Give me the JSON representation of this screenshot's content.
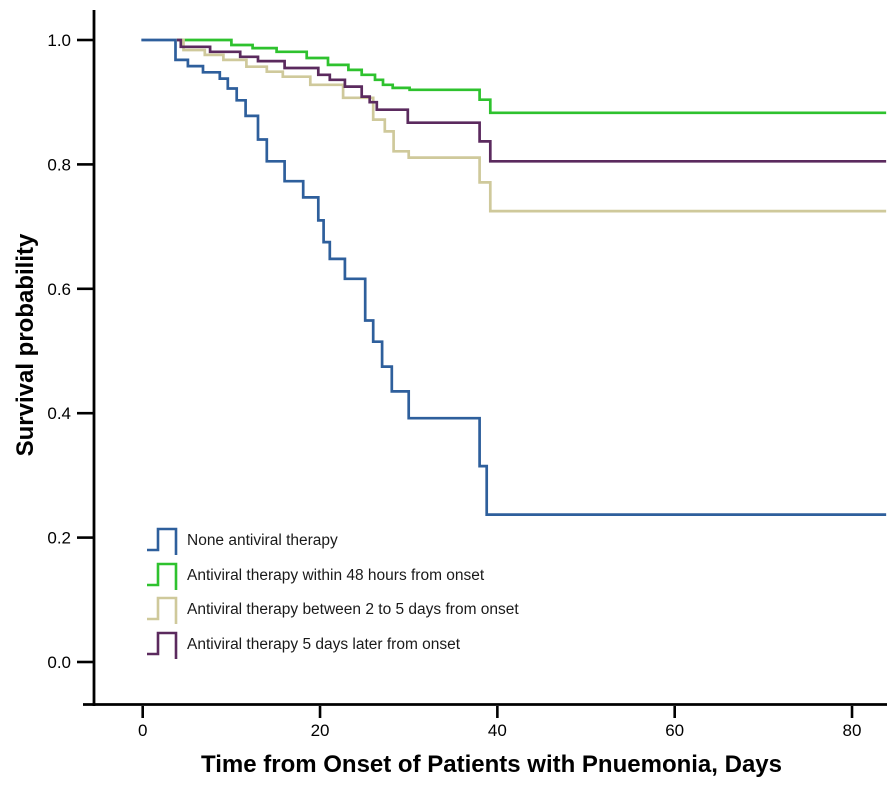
{
  "chart_data": {
    "type": "line",
    "variant": "kaplan_meier_step_plot",
    "title": "",
    "xlabel": "Time from Onset of Patients with Pnuemonia, Days",
    "ylabel": "Survival probability",
    "xlim": [
      -5.5,
      84
    ],
    "ylim": [
      0.0,
      1.05
    ],
    "x_ticks": [
      0,
      20,
      40,
      60,
      80
    ],
    "x_tick_labels": [
      "0",
      "20",
      "40",
      "60",
      "80"
    ],
    "y_ticks": [
      1.0,
      0.8,
      0.6,
      0.4,
      0.2,
      0.0
    ],
    "y_tick_labels": [
      "1.0",
      "0.8",
      "0.6",
      "0.4",
      "0.2",
      "0.0"
    ],
    "grid": false,
    "legend_position": "inside lower-left",
    "curve_end_day": 83.7,
    "axis_color": "#000000",
    "series": [
      {
        "name": "None antiviral therapy",
        "color": "#2e5f9c",
        "x": [
          0,
          3.7,
          5.1,
          6.8,
          8.7,
          9.6,
          10.6,
          11.6,
          13.0,
          14.0,
          16.0,
          18.1,
          19.8,
          20.4,
          21.1,
          22.8,
          25.1,
          26.0,
          27.0,
          28.1,
          30.0,
          38.0,
          38.8
        ],
        "y": [
          1.0,
          0.968,
          0.958,
          0.948,
          0.938,
          0.922,
          0.903,
          0.878,
          0.84,
          0.805,
          0.773,
          0.747,
          0.71,
          0.675,
          0.648,
          0.616,
          0.549,
          0.515,
          0.475,
          0.435,
          0.392,
          0.315,
          0.237
        ]
      },
      {
        "name": "Antiviral therapy within 48 hours from onset",
        "color": "#2ec22e",
        "x": [
          4.0,
          10.0,
          12.4,
          15.1,
          18.5,
          20.9,
          23.2,
          24.7,
          26.2,
          27.1,
          28.2,
          30.1,
          38.0,
          39.2
        ],
        "y": [
          1.0,
          0.992,
          0.987,
          0.981,
          0.971,
          0.96,
          0.952,
          0.944,
          0.936,
          0.928,
          0.923,
          0.92,
          0.904,
          0.883
        ]
      },
      {
        "name": "Antiviral therapy between 2 to 5 days from onset",
        "color": "#cfc99b",
        "x": [
          4.0,
          4.6,
          7.0,
          9.1,
          11.7,
          14.0,
          15.8,
          18.9,
          22.6,
          26.0,
          27.3,
          28.3,
          30.0,
          38.0,
          39.2
        ],
        "y": [
          1.0,
          0.984,
          0.976,
          0.968,
          0.957,
          0.949,
          0.941,
          0.928,
          0.907,
          0.872,
          0.853,
          0.821,
          0.811,
          0.771,
          0.725
        ]
      },
      {
        "name": "Antiviral therapy 5 days later from onset",
        "color": "#5b2a5e",
        "x": [
          4.0,
          4.3,
          7.6,
          11.0,
          13.0,
          16.0,
          19.8,
          21.1,
          22.8,
          24.7,
          25.6,
          26.4,
          29.9,
          38.0,
          39.2
        ],
        "y": [
          1.0,
          0.989,
          0.981,
          0.973,
          0.966,
          0.955,
          0.944,
          0.936,
          0.925,
          0.909,
          0.9,
          0.888,
          0.867,
          0.837,
          0.805
        ]
      }
    ]
  }
}
